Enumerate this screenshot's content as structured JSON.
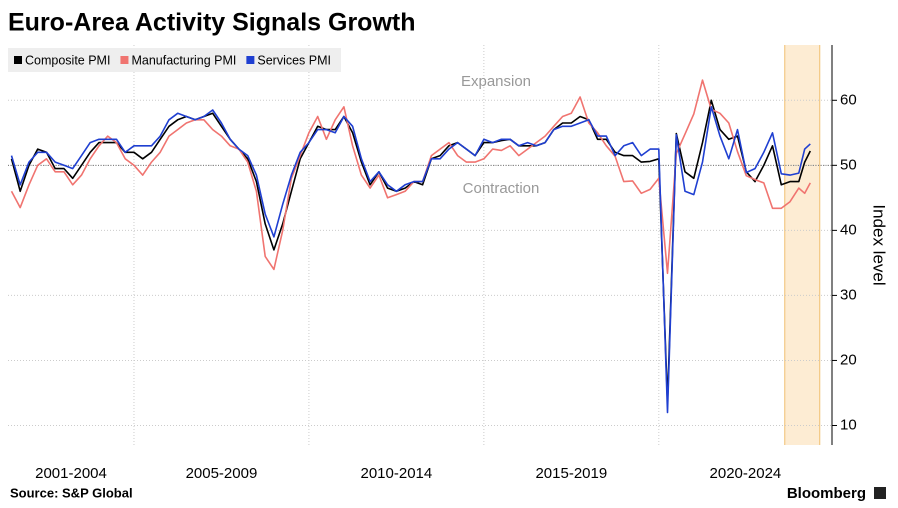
{
  "chart_data": {
    "type": "line",
    "title": "Euro-Area Activity Signals Growth",
    "source": "Source: S&P Global",
    "brand": "Bloomberg",
    "y_label": "Index level",
    "annotations": [
      "Expansion",
      "Contraction"
    ],
    "x_period_labels": [
      "2001-2004",
      "2005-2009",
      "2010-2014",
      "2015-2019",
      "2020-2024"
    ],
    "x": [
      2001.5,
      2001.75,
      2002,
      2002.25,
      2002.5,
      2002.75,
      2003,
      2003.25,
      2003.5,
      2003.75,
      2004,
      2004.25,
      2004.5,
      2004.75,
      2005,
      2005.25,
      2005.5,
      2005.75,
      2006,
      2006.25,
      2006.5,
      2006.75,
      2007,
      2007.25,
      2007.5,
      2007.75,
      2008,
      2008.25,
      2008.5,
      2008.75,
      2009,
      2009.25,
      2009.5,
      2009.75,
      2010,
      2010.25,
      2010.5,
      2010.75,
      2011,
      2011.25,
      2011.5,
      2011.75,
      2012,
      2012.25,
      2012.5,
      2012.75,
      2013,
      2013.25,
      2013.5,
      2013.75,
      2014,
      2014.25,
      2014.5,
      2014.75,
      2015,
      2015.25,
      2015.5,
      2015.75,
      2016,
      2016.25,
      2016.5,
      2016.75,
      2017,
      2017.25,
      2017.5,
      2017.75,
      2018,
      2018.25,
      2018.5,
      2018.75,
      2019,
      2019.25,
      2019.5,
      2019.75,
      2020,
      2020.25,
      2020.5,
      2020.75,
      2021,
      2021.25,
      2021.5,
      2021.75,
      2022,
      2022.25,
      2022.5,
      2022.75,
      2023,
      2023.25,
      2023.5,
      2023.75,
      2024,
      2024.17,
      2024.33
    ],
    "series": [
      {
        "name": "Composite PMI",
        "color": "#000000",
        "values": [
          51,
          46,
          50,
          52.5,
          52,
          49.5,
          49.5,
          48,
          50,
          52,
          53.5,
          53.5,
          53.5,
          52,
          52,
          51,
          52,
          54,
          56,
          57,
          57.5,
          57,
          57.5,
          58,
          56,
          54,
          52.5,
          51,
          47.5,
          41,
          37,
          41,
          46,
          51,
          53.5,
          56,
          55.5,
          55.5,
          57.5,
          55,
          50.5,
          47,
          49,
          46.5,
          46,
          46.5,
          47.5,
          47,
          51,
          51.5,
          53,
          53.5,
          52.5,
          51.5,
          53.5,
          53.5,
          53.8,
          54,
          53,
          53,
          53,
          53.5,
          55.5,
          56.5,
          56.5,
          57.5,
          57,
          54,
          54,
          52,
          51.5,
          51.5,
          50.5,
          50.6,
          51,
          13.6,
          54.9,
          49,
          48,
          53.5,
          60,
          55.5,
          54,
          54.5,
          49,
          47.5,
          50,
          53,
          47,
          47.5,
          47.5,
          50.5,
          52.2
        ]
      },
      {
        "name": "Manufacturing PMI",
        "color": "#f07470",
        "values": [
          46,
          43.5,
          47,
          50,
          51,
          49,
          49,
          47,
          48.5,
          51,
          53,
          54.5,
          53.5,
          51,
          50,
          48.5,
          50.5,
          52,
          54.5,
          55.5,
          56.5,
          57,
          57,
          55.5,
          54.5,
          53,
          52.5,
          50.5,
          46,
          36,
          34,
          40,
          48,
          51.5,
          55,
          57.5,
          54,
          57,
          59,
          53,
          48.5,
          46.5,
          48.5,
          45,
          45.5,
          46,
          47.5,
          47.5,
          51.5,
          52.5,
          53.5,
          51.5,
          50.5,
          50.5,
          51,
          52.5,
          52.3,
          53,
          51.5,
          52.5,
          53.5,
          54.5,
          56,
          57.5,
          58,
          60.5,
          56.5,
          55,
          53,
          51.4,
          47.5,
          47.6,
          45.7,
          46.3,
          48,
          33.4,
          51.8,
          54.8,
          57.9,
          63.1,
          58.6,
          58,
          56.5,
          52.1,
          48.4,
          47.8,
          47.3,
          43.4,
          43.4,
          44.4,
          46.5,
          45.7,
          47.3
        ]
      },
      {
        "name": "Services PMI",
        "color": "#1f3fd1",
        "values": [
          51.5,
          47,
          50.5,
          52,
          52,
          50.5,
          50,
          49.5,
          51.5,
          53.5,
          54,
          54,
          54,
          52,
          53,
          53,
          53,
          54.5,
          57,
          58,
          57.5,
          57,
          57.5,
          58.5,
          56.5,
          54,
          52.5,
          51.5,
          48.5,
          42.5,
          39,
          44,
          48.5,
          52,
          53.5,
          55.5,
          55.5,
          55,
          57.5,
          56,
          51,
          47.5,
          49,
          47,
          46,
          47,
          47.5,
          47.5,
          51,
          51,
          52.5,
          53.5,
          52.5,
          51.5,
          54,
          53.5,
          54,
          54,
          53,
          53.5,
          53,
          53.5,
          55.5,
          56,
          56,
          56.5,
          57,
          54.5,
          54.5,
          51.5,
          53,
          53.5,
          51.5,
          52.5,
          52.5,
          12,
          54.7,
          46,
          45.5,
          50.5,
          59,
          54.5,
          51,
          55.5,
          48.9,
          49.5,
          52,
          55,
          48.7,
          48.5,
          48.8,
          52.5,
          53.3
        ]
      }
    ],
    "xlim": [
      2001.4,
      2024.95
    ],
    "xticks": [
      2005,
      2010,
      2015,
      2020
    ],
    "ylim": [
      7,
      68.5
    ],
    "yticks": [
      10,
      20,
      30,
      40,
      50,
      60
    ],
    "reference_line": 50,
    "highlight": [
      2023.6,
      2024.6
    ],
    "grid": true,
    "legend": "top-left"
  }
}
